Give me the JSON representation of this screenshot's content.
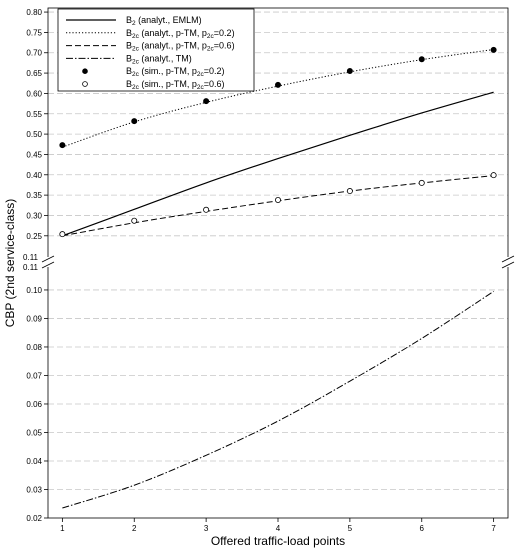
{
  "chart_data": {
    "type": "line",
    "xlabel": "Offered traffic-load points",
    "ylabel": "CBP (2nd service-class)",
    "x": [
      1,
      2,
      3,
      4,
      5,
      6,
      7
    ],
    "x_ticks": [
      "1",
      "2",
      "3",
      "4",
      "5",
      "6",
      "7"
    ],
    "xlim": [
      0.8,
      7.2
    ],
    "broken_y_axis": true,
    "y_upper_panel": {
      "ylim": [
        0.22,
        0.81
      ],
      "ticks": [
        "0.25",
        "0.30",
        "0.35",
        "0.40",
        "0.45",
        "0.50",
        "0.55",
        "0.60",
        "0.65",
        "0.70",
        "0.75",
        "0.80"
      ]
    },
    "y_lower_panel": {
      "ylim": [
        0.02,
        0.107
      ],
      "ticks": [
        "0.02",
        "0.03",
        "0.04",
        "0.05",
        "0.06",
        "0.07",
        "0.08",
        "0.09",
        "0.10"
      ]
    },
    "y_break_labels": [
      "0.11",
      "0.11"
    ],
    "grid": "horizontal dashed",
    "legend_position": "top-left",
    "series": [
      {
        "name": "B2 (analyt., EMLM)",
        "label_parts": [
          "B",
          "2",
          " (analyt., EMLM)",
          "",
          ""
        ],
        "style": "solid",
        "panel": "upper",
        "values": [
          0.25,
          0.315,
          0.38,
          0.44,
          0.497,
          0.552,
          0.603
        ]
      },
      {
        "name": "B2c (analyt., p-TM, p2c=0.2)",
        "label_parts": [
          "B",
          "2c",
          " (analyt., p-TM, p",
          "2c",
          "=0.2)"
        ],
        "style": "dotted",
        "panel": "upper",
        "values": [
          0.468,
          0.53,
          0.578,
          0.618,
          0.653,
          0.683,
          0.708
        ]
      },
      {
        "name": "B2c (analyt., p-TM, p2c=0.6)",
        "label_parts": [
          "B",
          "2c",
          " (analyt., p-TM, p",
          "2c",
          "=0.6)"
        ],
        "style": "dashed",
        "panel": "upper",
        "values": [
          0.25,
          0.282,
          0.31,
          0.336,
          0.36,
          0.38,
          0.398
        ]
      },
      {
        "name": "B2c (analyt., TM)",
        "label_parts": [
          "B",
          "2c",
          " (analyt., TM)",
          "",
          ""
        ],
        "style": "dash-dot",
        "panel": "lower",
        "values": [
          0.0235,
          0.0315,
          0.042,
          0.054,
          0.068,
          0.083,
          0.0995
        ]
      },
      {
        "name": "B2c (sim., p-TM, p2c=0.2)",
        "label_parts": [
          "B",
          "2c",
          " (sim., p-TM, p",
          "2c",
          "=0.2)"
        ],
        "style": "filled-marker",
        "panel": "upper",
        "values": [
          0.473,
          0.532,
          0.581,
          0.621,
          0.655,
          0.684,
          0.707
        ]
      },
      {
        "name": "B2c (sim., p-TM, p2c=0.6)",
        "label_parts": [
          "B",
          "2c",
          " (sim., p-TM, p",
          "2c",
          "=0.6)"
        ],
        "style": "open-marker",
        "panel": "upper",
        "values": [
          0.254,
          0.287,
          0.314,
          0.338,
          0.36,
          0.38,
          0.399
        ]
      }
    ]
  }
}
